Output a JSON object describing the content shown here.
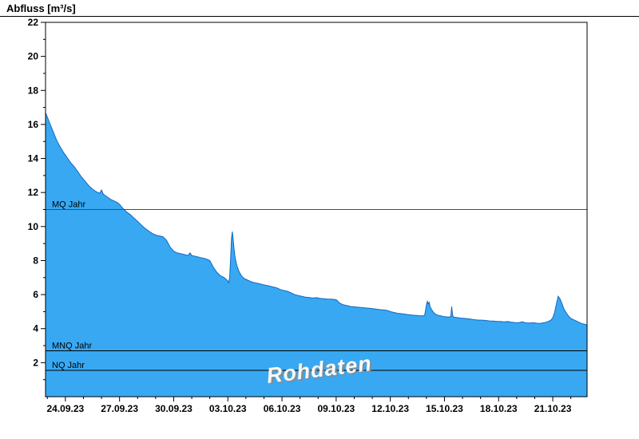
{
  "title": "Abfluss [m³/s]",
  "watermark": "Rohdaten",
  "chart_data": {
    "type": "area",
    "title": "Abfluss [m³/s]",
    "ylabel": "Abfluss [m³/s]",
    "ylim": [
      0,
      22
    ],
    "y_major_ticks": [
      2,
      4,
      6,
      8,
      10,
      12,
      14,
      16,
      18,
      20,
      22
    ],
    "x_range_days": [
      0,
      30
    ],
    "x_tick_labels": [
      "24.09.23",
      "27.09.23",
      "30.09.23",
      "03.10.23",
      "06.10.23",
      "09.10.23",
      "12.10.23",
      "15.10.23",
      "18.10.23",
      "21.10.23"
    ],
    "x_tick_days": [
      1.1,
      4.1,
      7.1,
      10.1,
      13.1,
      16.1,
      19.1,
      22.1,
      25.1,
      28.1
    ],
    "grid": false,
    "legend": "none",
    "colors": {
      "area_fill": "#38a8f2",
      "area_stroke": "#1565c0",
      "mq_line": "#008000",
      "ref_line": "#000000"
    },
    "reference_lines": [
      {
        "label": "MQ Jahr",
        "value": 11.0,
        "color": "#008000"
      },
      {
        "label": "MNQ Jahr",
        "value": 2.7,
        "color": "#000000"
      },
      {
        "label": "NQ Jahr",
        "value": 1.55,
        "color": "#000000"
      }
    ],
    "series": [
      {
        "name": "Abfluss (Rohdaten)",
        "unit": "m³/s",
        "points": [
          [
            0,
            16.7
          ],
          [
            0.15,
            16.3
          ],
          [
            0.3,
            15.9
          ],
          [
            0.45,
            15.5
          ],
          [
            0.6,
            15.1
          ],
          [
            0.8,
            14.7
          ],
          [
            1,
            14.35
          ],
          [
            1.2,
            14.05
          ],
          [
            1.4,
            13.75
          ],
          [
            1.6,
            13.5
          ],
          [
            1.8,
            13.2
          ],
          [
            2,
            12.9
          ],
          [
            2.2,
            12.65
          ],
          [
            2.4,
            12.4
          ],
          [
            2.6,
            12.2
          ],
          [
            2.8,
            12.05
          ],
          [
            3,
            11.95
          ],
          [
            3.1,
            12.15
          ],
          [
            3.2,
            11.9
          ],
          [
            3.4,
            11.75
          ],
          [
            3.6,
            11.6
          ],
          [
            3.8,
            11.5
          ],
          [
            4,
            11.4
          ],
          [
            4.1,
            11.3
          ],
          [
            4.3,
            11.05
          ],
          [
            4.5,
            10.85
          ],
          [
            4.7,
            10.7
          ],
          [
            4.9,
            10.5
          ],
          [
            5.1,
            10.3
          ],
          [
            5.3,
            10.1
          ],
          [
            5.5,
            9.9
          ],
          [
            5.7,
            9.75
          ],
          [
            5.9,
            9.6
          ],
          [
            6.1,
            9.5
          ],
          [
            6.3,
            9.45
          ],
          [
            6.5,
            9.4
          ],
          [
            6.7,
            9.2
          ],
          [
            6.9,
            8.8
          ],
          [
            7.1,
            8.55
          ],
          [
            7.3,
            8.45
          ],
          [
            7.5,
            8.4
          ],
          [
            7.7,
            8.35
          ],
          [
            7.9,
            8.3
          ],
          [
            8,
            8.45
          ],
          [
            8.1,
            8.3
          ],
          [
            8.3,
            8.25
          ],
          [
            8.5,
            8.2
          ],
          [
            8.7,
            8.15
          ],
          [
            8.9,
            8.1
          ],
          [
            9.1,
            8
          ],
          [
            9.3,
            7.6
          ],
          [
            9.5,
            7.3
          ],
          [
            9.7,
            7.1
          ],
          [
            9.9,
            7
          ],
          [
            10,
            6.9
          ],
          [
            10.1,
            6.8
          ],
          [
            10.15,
            6.7
          ],
          [
            10.2,
            7
          ],
          [
            10.25,
            8
          ],
          [
            10.3,
            9.3
          ],
          [
            10.35,
            9.7
          ],
          [
            10.4,
            9.2
          ],
          [
            10.45,
            8.6
          ],
          [
            10.5,
            8.2
          ],
          [
            10.6,
            7.7
          ],
          [
            10.7,
            7.4
          ],
          [
            10.8,
            7.2
          ],
          [
            10.9,
            7.05
          ],
          [
            11,
            6.95
          ],
          [
            11.2,
            6.85
          ],
          [
            11.4,
            6.75
          ],
          [
            11.6,
            6.7
          ],
          [
            11.8,
            6.65
          ],
          [
            12,
            6.6
          ],
          [
            12.2,
            6.55
          ],
          [
            12.4,
            6.5
          ],
          [
            12.6,
            6.45
          ],
          [
            12.8,
            6.4
          ],
          [
            13,
            6.3
          ],
          [
            13.2,
            6.25
          ],
          [
            13.4,
            6.2
          ],
          [
            13.6,
            6.1
          ],
          [
            13.8,
            6
          ],
          [
            14,
            5.95
          ],
          [
            14.2,
            5.9
          ],
          [
            14.4,
            5.85
          ],
          [
            14.6,
            5.83
          ],
          [
            14.8,
            5.8
          ],
          [
            15,
            5.82
          ],
          [
            15.2,
            5.78
          ],
          [
            15.4,
            5.76
          ],
          [
            15.6,
            5.74
          ],
          [
            15.8,
            5.73
          ],
          [
            16,
            5.72
          ],
          [
            16.1,
            5.7
          ],
          [
            16.3,
            5.5
          ],
          [
            16.5,
            5.4
          ],
          [
            16.7,
            5.35
          ],
          [
            16.9,
            5.3
          ],
          [
            17.1,
            5.28
          ],
          [
            17.3,
            5.26
          ],
          [
            17.5,
            5.24
          ],
          [
            17.7,
            5.22
          ],
          [
            17.9,
            5.2
          ],
          [
            18.1,
            5.18
          ],
          [
            18.3,
            5.15
          ],
          [
            18.5,
            5.12
          ],
          [
            18.7,
            5.1
          ],
          [
            18.9,
            5.08
          ],
          [
            19.1,
            5
          ],
          [
            19.3,
            4.95
          ],
          [
            19.5,
            4.9
          ],
          [
            19.7,
            4.88
          ],
          [
            19.9,
            4.85
          ],
          [
            20.1,
            4.82
          ],
          [
            20.3,
            4.8
          ],
          [
            20.5,
            4.78
          ],
          [
            20.7,
            4.76
          ],
          [
            20.9,
            4.75
          ],
          [
            21,
            4.78
          ],
          [
            21.05,
            5.05
          ],
          [
            21.1,
            5.4
          ],
          [
            21.15,
            5.6
          ],
          [
            21.2,
            5.45
          ],
          [
            21.25,
            5.55
          ],
          [
            21.3,
            5.3
          ],
          [
            21.4,
            5.1
          ],
          [
            21.5,
            4.95
          ],
          [
            21.6,
            4.85
          ],
          [
            21.7,
            4.8
          ],
          [
            21.9,
            4.75
          ],
          [
            22.1,
            4.7
          ],
          [
            22.3,
            4.68
          ],
          [
            22.45,
            4.7
          ],
          [
            22.5,
            5.3
          ],
          [
            22.55,
            4.8
          ],
          [
            22.6,
            4.68
          ],
          [
            22.8,
            4.65
          ],
          [
            23,
            4.62
          ],
          [
            23.2,
            4.6
          ],
          [
            23.4,
            4.58
          ],
          [
            23.6,
            4.55
          ],
          [
            23.8,
            4.52
          ],
          [
            24,
            4.5
          ],
          [
            24.2,
            4.5
          ],
          [
            24.4,
            4.48
          ],
          [
            24.6,
            4.45
          ],
          [
            24.8,
            4.44
          ],
          [
            25,
            4.43
          ],
          [
            25.2,
            4.42
          ],
          [
            25.4,
            4.4
          ],
          [
            25.6,
            4.42
          ],
          [
            25.8,
            4.38
          ],
          [
            26,
            4.36
          ],
          [
            26.2,
            4.35
          ],
          [
            26.4,
            4.4
          ],
          [
            26.6,
            4.34
          ],
          [
            26.8,
            4.33
          ],
          [
            27,
            4.35
          ],
          [
            27.2,
            4.32
          ],
          [
            27.4,
            4.3
          ],
          [
            27.6,
            4.35
          ],
          [
            27.8,
            4.4
          ],
          [
            28,
            4.5
          ],
          [
            28.1,
            4.65
          ],
          [
            28.2,
            4.95
          ],
          [
            28.3,
            5.45
          ],
          [
            28.4,
            5.9
          ],
          [
            28.5,
            5.75
          ],
          [
            28.6,
            5.5
          ],
          [
            28.7,
            5.2
          ],
          [
            28.8,
            5
          ],
          [
            28.9,
            4.85
          ],
          [
            29,
            4.7
          ],
          [
            29.1,
            4.6
          ],
          [
            29.3,
            4.5
          ],
          [
            29.5,
            4.4
          ],
          [
            29.7,
            4.3
          ],
          [
            29.9,
            4.25
          ],
          [
            30,
            4.2
          ]
        ]
      }
    ]
  }
}
